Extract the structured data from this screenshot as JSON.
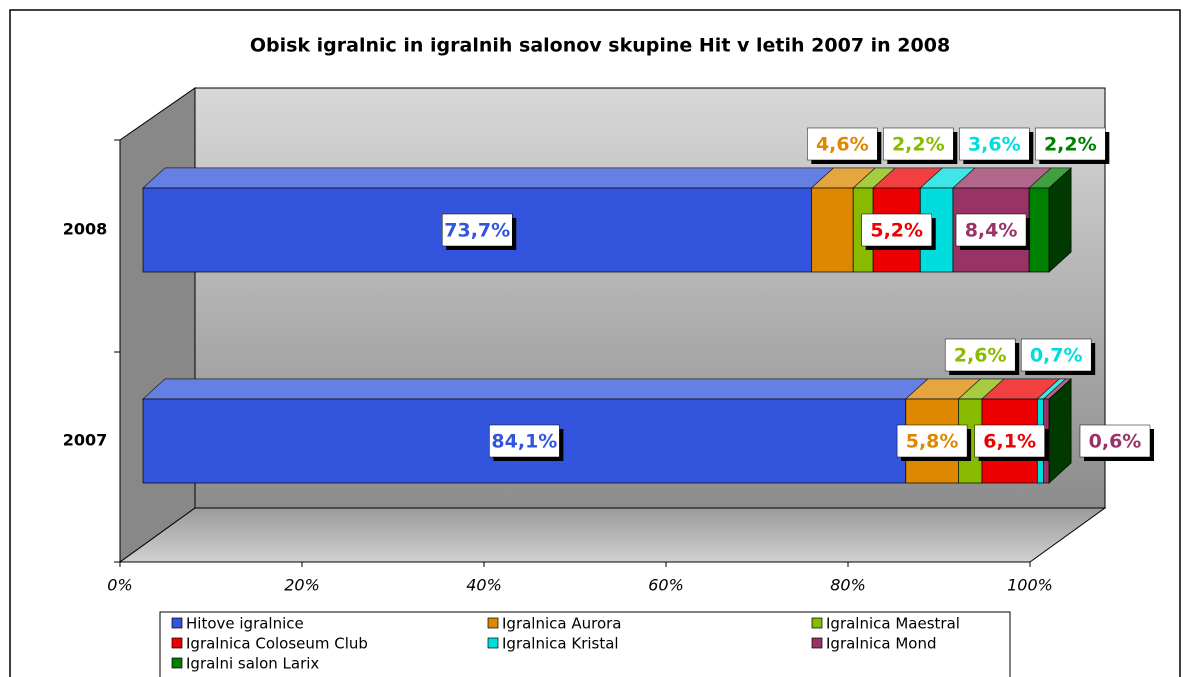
{
  "chart_data": {
    "type": "bar",
    "stacked": true,
    "orientation": "horizontal",
    "title": "Obisk igralnic in igralnih salonov skupine Hit v letih 2007 in 2008",
    "categories": [
      "2008",
      "2007"
    ],
    "series": [
      {
        "name": "Hitove igralnice",
        "color": "#3355dd",
        "values": [
          73.7,
          84.1
        ],
        "value_labels": [
          "73,7%",
          "84,1%"
        ]
      },
      {
        "name": "Igralnica Aurora",
        "color": "#dd8800",
        "values": [
          4.6,
          5.8
        ],
        "value_labels": [
          "4,6%",
          "5,8%"
        ]
      },
      {
        "name": "Igralnica Maestral",
        "color": "#88bb00",
        "values": [
          2.2,
          2.6
        ],
        "value_labels": [
          "2,2%",
          "2,6%"
        ]
      },
      {
        "name": "Igralnica Coloseum Club",
        "color": "#ee0000",
        "values": [
          5.2,
          6.1
        ],
        "value_labels": [
          "5,2%",
          "6,1%"
        ]
      },
      {
        "name": "Igralnica Kristal",
        "color": "#00dddd",
        "values": [
          3.6,
          0.7
        ],
        "value_labels": [
          "3,6%",
          "0,7%"
        ]
      },
      {
        "name": "Igralnica Mond",
        "color": "#993366",
        "values": [
          8.4,
          0.6
        ],
        "value_labels": [
          "8,4%",
          "0,6%"
        ]
      },
      {
        "name": "Igralni salon Larix",
        "color": "#008000",
        "values": [
          2.2,
          0
        ],
        "value_labels": [
          "2,2%",
          null
        ]
      }
    ],
    "xlim": [
      0,
      100
    ],
    "xticks": [
      {
        "value": 0,
        "label": "0%"
      },
      {
        "value": 20,
        "label": "20%"
      },
      {
        "value": 40,
        "label": "40%"
      },
      {
        "value": 60,
        "label": "60%"
      },
      {
        "value": 80,
        "label": "80%"
      },
      {
        "value": 100,
        "label": "100%"
      }
    ],
    "legend": "bottom"
  }
}
